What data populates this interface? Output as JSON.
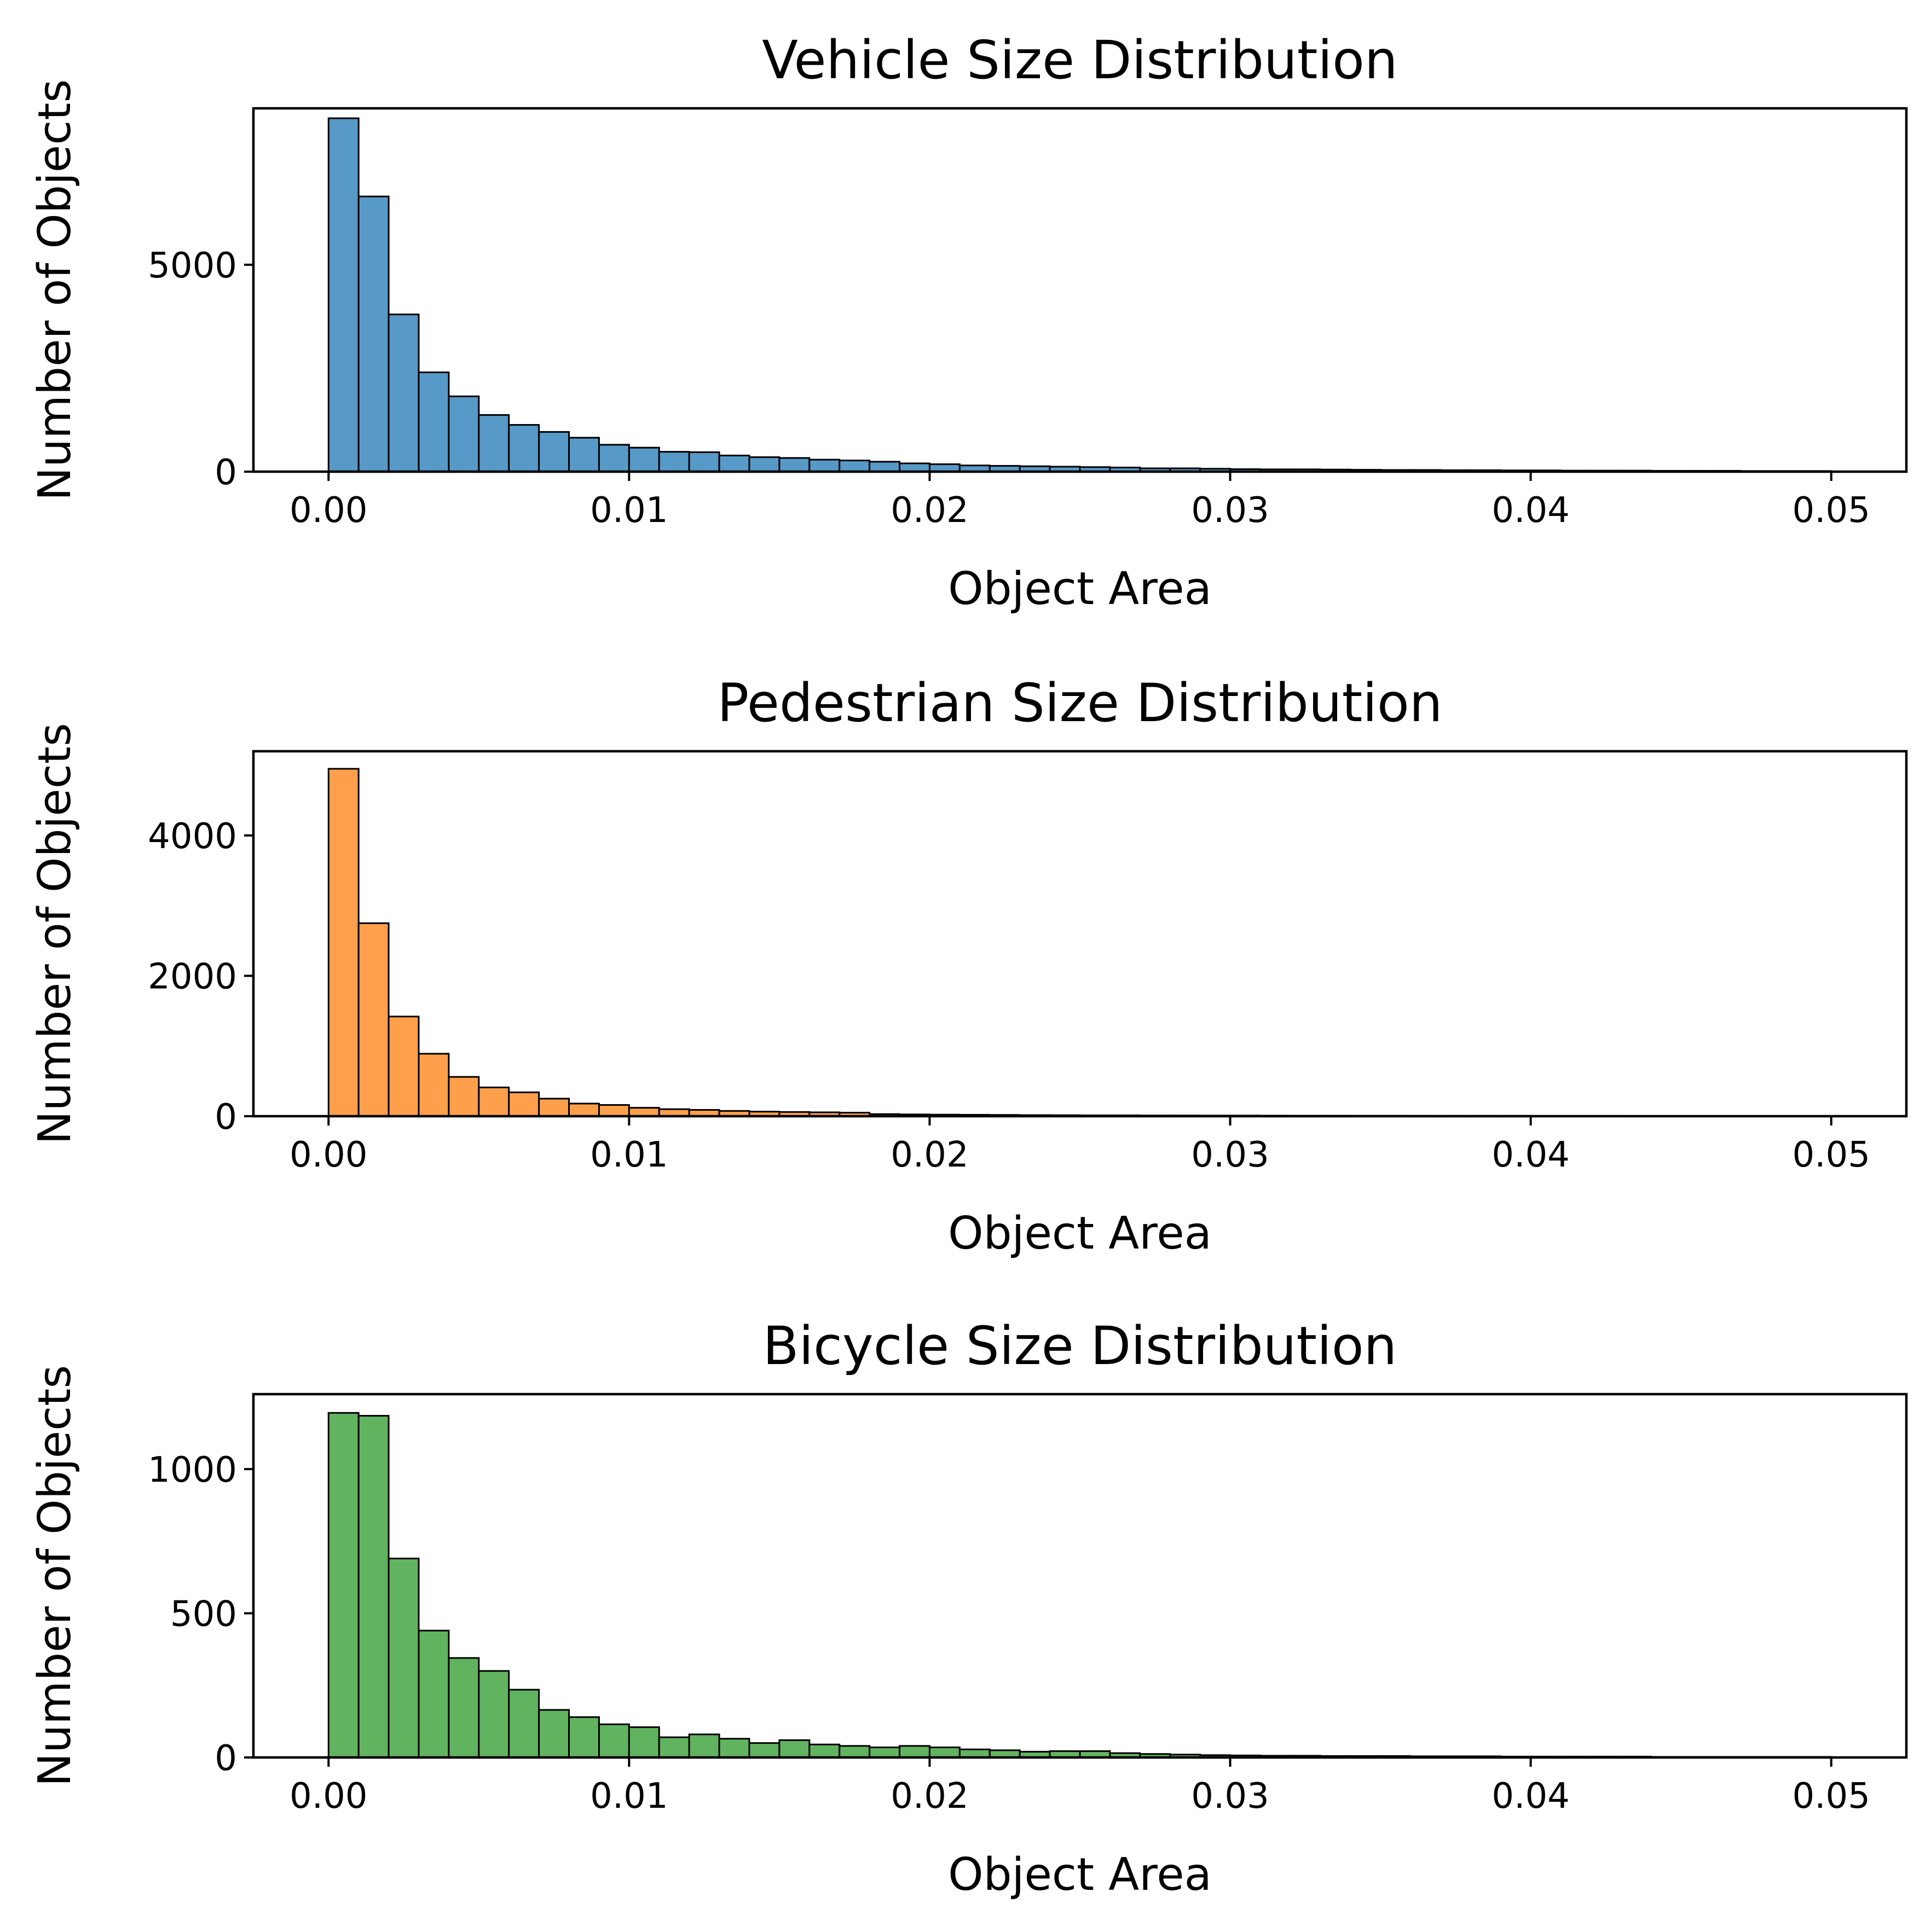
{
  "chart_data": [
    {
      "type": "bar",
      "title": "Vehicle Size Distribution",
      "xlabel": "Object Area",
      "ylabel": "Number of Objects",
      "color": "#5799c7",
      "xlim": [
        -0.0025,
        0.0525
      ],
      "ylim": [
        0,
        8780
      ],
      "xticks": [
        0.0,
        0.01,
        0.02,
        0.03,
        0.04,
        0.05
      ],
      "xtick_labels": [
        "0.00",
        "0.01",
        "0.02",
        "0.03",
        "0.04",
        "0.05"
      ],
      "yticks": [
        0,
        5000
      ],
      "ytick_labels": [
        "0",
        "5000"
      ],
      "bin_start": 0.0,
      "bin_width": 0.001,
      "values": [
        8540,
        6650,
        3800,
        2400,
        1820,
        1370,
        1130,
        960,
        820,
        650,
        580,
        480,
        470,
        390,
        350,
        330,
        290,
        270,
        240,
        200,
        180,
        150,
        140,
        130,
        120,
        110,
        100,
        80,
        80,
        70,
        60,
        55,
        55,
        50,
        45,
        40,
        40,
        35,
        35,
        30,
        30,
        25,
        25,
        25,
        20,
        20,
        20,
        15,
        15,
        15
      ]
    },
    {
      "type": "bar",
      "title": "Pedestrian Size Distribution",
      "xlabel": "Object Area",
      "ylabel": "Number of Objects",
      "color": "#fe9f4b",
      "xlim": [
        -0.0025,
        0.0525
      ],
      "ylim": [
        0,
        5200
      ],
      "xticks": [
        0.0,
        0.01,
        0.02,
        0.03,
        0.04,
        0.05
      ],
      "xtick_labels": [
        "0.00",
        "0.01",
        "0.02",
        "0.03",
        "0.04",
        "0.05"
      ],
      "yticks": [
        0,
        2000,
        4000
      ],
      "ytick_labels": [
        "0",
        "2000",
        "4000"
      ],
      "bin_start": 0.0,
      "bin_width": 0.001,
      "values": [
        4950,
        2750,
        1420,
        890,
        560,
        410,
        340,
        250,
        180,
        160,
        120,
        100,
        90,
        75,
        65,
        60,
        55,
        50,
        30,
        25,
        22,
        20,
        18,
        15,
        14,
        12,
        12,
        10,
        10,
        9,
        9,
        8,
        7,
        7,
        6,
        6,
        5,
        5,
        5,
        5,
        4,
        4,
        4,
        3,
        3,
        3,
        3,
        2,
        2,
        2
      ]
    },
    {
      "type": "bar",
      "title": "Bicycle Size Distribution",
      "xlabel": "Object Area",
      "ylabel": "Number of Objects",
      "color": "#62b35f",
      "xlim": [
        -0.0025,
        0.0525
      ],
      "ylim": [
        0,
        1260
      ],
      "xticks": [
        0.0,
        0.01,
        0.02,
        0.03,
        0.04,
        0.05
      ],
      "xtick_labels": [
        "0.00",
        "0.01",
        "0.02",
        "0.03",
        "0.04",
        "0.05"
      ],
      "yticks": [
        0,
        500,
        1000
      ],
      "ytick_labels": [
        "0",
        "500",
        "1000"
      ],
      "bin_start": 0.0,
      "bin_width": 0.001,
      "values": [
        1195,
        1185,
        690,
        440,
        345,
        300,
        235,
        165,
        140,
        115,
        105,
        70,
        80,
        65,
        50,
        60,
        45,
        40,
        35,
        40,
        35,
        28,
        25,
        20,
        22,
        22,
        15,
        12,
        10,
        8,
        7,
        6,
        6,
        5,
        5,
        5,
        4,
        4,
        4,
        3,
        3,
        3,
        3,
        3,
        2,
        2,
        2,
        2,
        2,
        2
      ]
    }
  ]
}
